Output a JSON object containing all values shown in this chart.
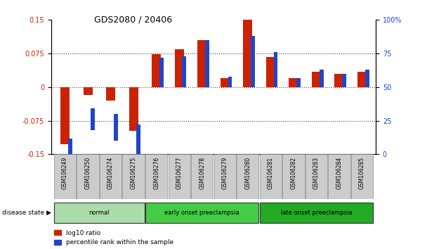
{
  "title": "GDS2080 / 20406",
  "samples": [
    "GSM106249",
    "GSM106250",
    "GSM106274",
    "GSM106275",
    "GSM106276",
    "GSM106277",
    "GSM106278",
    "GSM106279",
    "GSM106280",
    "GSM106281",
    "GSM106282",
    "GSM106283",
    "GSM106284",
    "GSM106285"
  ],
  "log10_ratio": [
    -0.128,
    -0.018,
    -0.03,
    -0.098,
    0.073,
    0.085,
    0.105,
    0.02,
    0.15,
    0.067,
    0.02,
    0.035,
    0.03,
    0.035
  ],
  "percentile_rank": [
    12,
    34,
    30,
    22,
    72,
    73,
    85,
    58,
    88,
    76,
    57,
    63,
    60,
    63
  ],
  "groups": [
    {
      "label": "normal",
      "start": 0,
      "end": 4,
      "color": "#aaddaa"
    },
    {
      "label": "early onset preeclampsia",
      "start": 4,
      "end": 9,
      "color": "#44cc44"
    },
    {
      "label": "late onset preeclampsia",
      "start": 9,
      "end": 14,
      "color": "#22aa22"
    }
  ],
  "ylim_left": [
    -0.15,
    0.15
  ],
  "ylim_right": [
    0,
    100
  ],
  "yticks_left": [
    -0.15,
    -0.075,
    0,
    0.075,
    0.15
  ],
  "yticks_left_labels": [
    "-0.15",
    "-0.075",
    "0",
    "0.075",
    "0.15"
  ],
  "yticks_right": [
    0,
    25,
    50,
    75,
    100
  ],
  "yticks_right_labels": [
    "0",
    "25",
    "50",
    "75",
    "100%"
  ],
  "bar_color_red": "#cc2200",
  "bar_color_blue": "#2244cc",
  "hline_color": "#cc2200",
  "dotted_line_color": "#444444",
  "legend_red": "log10 ratio",
  "legend_blue": "percentile rank within the sample",
  "disease_state_label": "disease state",
  "background_color": "#ffffff",
  "tick_label_color_left": "#cc2200",
  "tick_label_color_right": "#2244cc",
  "box_facecolor": "#cccccc",
  "box_edgecolor": "#888888"
}
